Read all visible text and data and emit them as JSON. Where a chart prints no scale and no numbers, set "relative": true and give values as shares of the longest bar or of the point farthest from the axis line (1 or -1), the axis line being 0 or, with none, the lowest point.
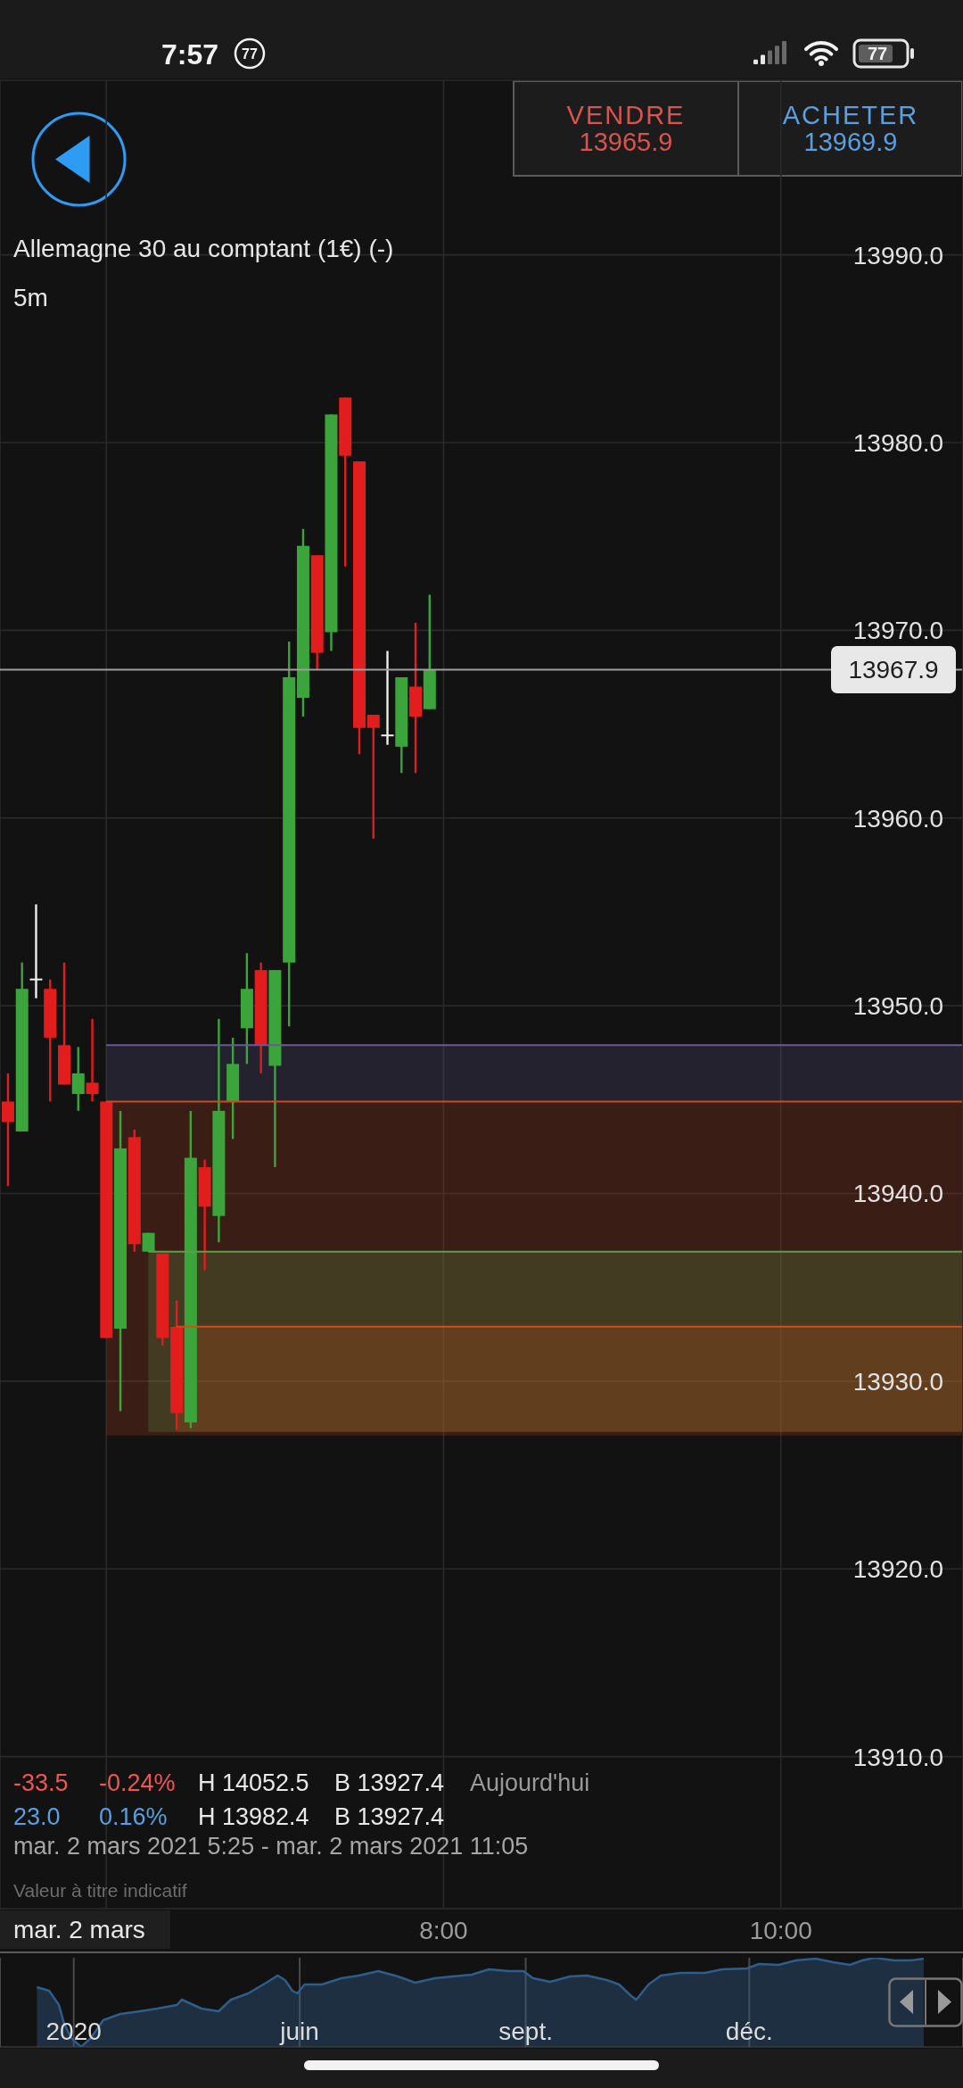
{
  "chart_data": [
    {
      "type": "candlestick",
      "title": "Allemagne 30 au comptant (1€) (-)",
      "subtitle": "5m",
      "x": [
        5.4167,
        5.5,
        5.5833,
        5.6667,
        5.75,
        5.8333,
        5.9167,
        6.0,
        6.0833,
        6.1667,
        6.25,
        6.3333,
        6.4167,
        6.5,
        6.5833,
        6.6667,
        6.75,
        6.8333,
        6.9167,
        7.0,
        7.0833,
        7.1667,
        7.25,
        7.3333,
        7.4167,
        7.5,
        7.5833,
        7.6667,
        7.75,
        7.8333,
        7.9167
      ],
      "ohlc": [
        [
          13944.9,
          13946.4,
          13940.4,
          13943.8
        ],
        [
          13943.3,
          13952.3,
          13943.3,
          13950.9
        ],
        [
          13951.4,
          13955.4,
          13950.4,
          13951.4
        ],
        [
          13950.9,
          13951.4,
          13944.9,
          13948.3
        ],
        [
          13947.9,
          13952.3,
          13945.8,
          13945.8
        ],
        [
          13945.3,
          13947.8,
          13944.4,
          13946.4
        ],
        [
          13945.9,
          13949.3,
          13944.9,
          13945.3
        ],
        [
          13944.9,
          13944.9,
          13932.3,
          13932.3
        ],
        [
          13932.8,
          13944.4,
          13928.4,
          13942.4
        ],
        [
          13943.0,
          13943.4,
          13936.9,
          13937.3
        ],
        [
          13936.9,
          13937.9,
          13936.9,
          13937.9
        ],
        [
          13936.8,
          13936.8,
          13931.9,
          13932.3
        ],
        [
          13932.9,
          13934.3,
          13927.4,
          13928.3
        ],
        [
          13927.8,
          13944.4,
          13927.5,
          13941.9
        ],
        [
          13941.4,
          13941.8,
          13935.9,
          13939.3
        ],
        [
          13938.8,
          13949.3,
          13937.4,
          13944.4
        ],
        [
          13944.9,
          13948.3,
          13942.9,
          13946.9
        ],
        [
          13948.8,
          13952.8,
          13946.9,
          13950.9
        ],
        [
          13951.9,
          13952.3,
          13946.4,
          13947.9
        ],
        [
          13946.8,
          13951.9,
          13941.4,
          13951.9
        ],
        [
          13952.3,
          13969.4,
          13948.9,
          13967.5
        ],
        [
          13966.4,
          13975.4,
          13965.4,
          13974.5
        ],
        [
          13974.0,
          13974.0,
          13967.9,
          13968.8
        ],
        [
          13969.9,
          13981.5,
          13968.9,
          13981.5
        ],
        [
          13982.4,
          13982.4,
          13973.4,
          13979.3
        ],
        [
          13979.0,
          13979.0,
          13963.4,
          13964.8
        ],
        [
          13965.5,
          13965.5,
          13958.9,
          13964.8
        ],
        [
          13964.4,
          13968.9,
          13963.9,
          13964.4
        ],
        [
          13963.8,
          13967.5,
          13962.4,
          13967.5
        ],
        [
          13967.0,
          13970.4,
          13962.4,
          13965.4
        ],
        [
          13965.8,
          13971.9,
          13965.8,
          13967.9
        ]
      ],
      "colors": [
        "#e11d1d",
        "#3ba53b",
        "#eeeeee",
        "#e11d1d",
        "#e11d1d",
        "#3ba53b",
        "#e11d1d",
        "#e11d1d",
        "#3ba53b",
        "#e11d1d",
        "#3ba53b",
        "#e11d1d",
        "#e11d1d",
        "#3ba53b",
        "#e11d1d",
        "#3ba53b",
        "#3ba53b",
        "#3ba53b",
        "#e11d1d",
        "#3ba53b",
        "#3ba53b",
        "#3ba53b",
        "#e11d1d",
        "#3ba53b",
        "#e11d1d",
        "#e11d1d",
        "#e11d1d",
        "#eeeeee",
        "#3ba53b",
        "#e11d1d",
        "#3ba53b"
      ],
      "series": [
        {
          "type": "line",
          "x": [
            6.0,
            11.08
          ],
          "values": [
            13947.9,
            13947.9
          ],
          "lower": [
            13944.9,
            13944.9
          ],
          "upper": [
            13947.9,
            13947.9
          ],
          "color": "#6b5b95"
        },
        {
          "type": "line",
          "x": [
            6.0,
            11.08
          ],
          "values": [
            13944.9,
            13944.9
          ],
          "lower": [
            13927.1,
            13927.1
          ],
          "upper": [
            13944.9,
            13944.9
          ],
          "color": "#c84b1f"
        },
        {
          "type": "line",
          "x": [
            6.25,
            11.08
          ],
          "values": [
            13936.9,
            13936.9
          ],
          "lower": [
            13927.3,
            13927.3
          ],
          "upper": [
            13936.9,
            13936.9
          ],
          "color": "#5e9e4c"
        },
        {
          "type": "line",
          "x": [
            6.4167,
            11.08
          ],
          "values": [
            13932.9,
            13932.9
          ],
          "lower": [
            13927.3,
            13927.3
          ],
          "upper": [
            13932.9,
            13932.9
          ],
          "color": "#d24e17"
        }
      ],
      "xlim": [
        5.37,
        11.08
      ],
      "xticks": [
        {
          "value": 6,
          "label": null
        },
        {
          "value": 8,
          "label": "8:00"
        },
        {
          "value": 10,
          "label": "10:00"
        }
      ],
      "ylim": [
        13901.9,
        13999.3
      ],
      "yticks": [
        {
          "value": 13910,
          "label": "13910.0"
        },
        {
          "value": 13920,
          "label": "13920.0"
        },
        {
          "value": 13930,
          "label": "13930.0"
        },
        {
          "value": 13940,
          "label": "13940.0"
        },
        {
          "value": 13950,
          "label": "13950.0"
        },
        {
          "value": 13960,
          "label": "13960.0"
        },
        {
          "value": 13970,
          "label": "13970.0"
        },
        {
          "value": 13980,
          "label": "13980.0"
        },
        {
          "value": 13990,
          "label": "13990.0"
        }
      ],
      "grid": true,
      "ref_lines": [
        {
          "axis": "y",
          "value": 13967.9,
          "label": "13967.9",
          "color": "#9e9e9e"
        }
      ],
      "annotations": [
        "VENDRE",
        "13965.9",
        "ACHETER",
        "13969.9",
        "-33.5",
        "-0.24%",
        "H 14052.5",
        "B 13927.4",
        "Aujourd'hui",
        "23.0",
        "0.16%",
        "H 13982.4",
        "B 13927.4",
        "mar. 2 mars 2021 5:25 - mar. 2 mars 2021 11:05",
        "Valeur à titre indicatif",
        "mar. 2 mars",
        "7:57",
        "77",
        "77"
      ]
    },
    {
      "type": "area",
      "relative": true,
      "color": "#2f5d8a",
      "x": [
        "2020-02-15",
        "2020-02-20",
        "2020-02-24",
        "2020-02-26",
        "2020-02-29",
        "2020-03-04",
        "2020-03-08",
        "2020-03-13",
        "2020-03-20",
        "2020-03-28",
        "2020-04-04",
        "2020-04-12",
        "2020-04-14",
        "2020-04-22",
        "2020-04-29",
        "2020-05-04",
        "2020-05-11",
        "2020-05-19",
        "2020-05-23",
        "2020-05-26",
        "2020-05-29",
        "2020-05-31",
        "2020-06-03",
        "2020-06-10",
        "2020-06-18",
        "2020-06-25",
        "2020-07-03",
        "2020-07-11",
        "2020-07-18",
        "2020-07-26",
        "2020-08-02",
        "2020-08-10",
        "2020-08-17",
        "2020-08-25",
        "2020-08-31",
        "2020-09-04",
        "2020-09-11",
        "2020-09-19",
        "2020-09-26",
        "2020-10-04",
        "2020-10-09",
        "2020-10-14",
        "2020-10-16",
        "2020-10-21",
        "2020-10-26",
        "2020-11-03",
        "2020-11-13",
        "2020-11-20",
        "2020-11-30",
        "2020-12-05",
        "2020-12-13",
        "2020-12-20",
        "2020-12-28",
        "2021-01-04",
        "2021-01-11",
        "2021-01-16",
        "2021-01-21",
        "2021-01-29",
        "2021-02-05",
        "2021-02-10"
      ],
      "values": [
        0.67,
        0.63,
        0.47,
        0.27,
        0.1,
        0,
        0.1,
        0.3,
        0.37,
        0.4,
        0.43,
        0.47,
        0.53,
        0.43,
        0.4,
        0.53,
        0.6,
        0.73,
        0.8,
        0.75,
        0.63,
        0.6,
        0.7,
        0.7,
        0.77,
        0.8,
        0.85,
        0.79,
        0.72,
        0.77,
        0.79,
        0.81,
        0.87,
        0.85,
        0.85,
        0.77,
        0.73,
        0.79,
        0.8,
        0.75,
        0.7,
        0.57,
        0.53,
        0.7,
        0.8,
        0.83,
        0.83,
        0.87,
        0.88,
        0.93,
        0.92,
        0.97,
        0.99,
        0.95,
        0.92,
        0.97,
        1,
        0.97,
        0.97,
        0.99
      ],
      "xlim": [
        "2020-01-31",
        "2021-02-26"
      ],
      "xticks": [
        {
          "value": "2020-03-01",
          "label": "2020"
        },
        {
          "value": "2020-06-01",
          "label": "juin"
        },
        {
          "value": "2020-09-01",
          "label": "sept."
        },
        {
          "value": "2020-12-01",
          "label": "déc."
        }
      ],
      "tick_labels": "x",
      "grid": "x"
    }
  ]
}
